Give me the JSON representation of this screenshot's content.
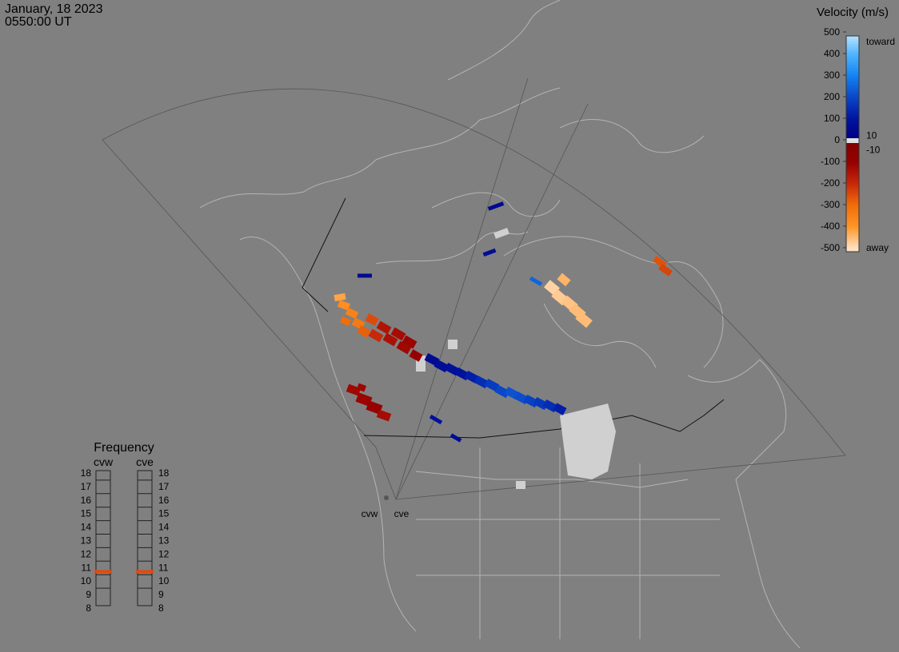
{
  "header": {
    "date": "January, 18 2023",
    "time": "0550:00 UT"
  },
  "velocity_scale": {
    "title": "Velocity (m/s)",
    "ticks": [
      500,
      400,
      300,
      200,
      100,
      0,
      -100,
      -200,
      -300,
      -400,
      -500
    ],
    "toward": "toward",
    "away": "away",
    "upper_threshold": 10,
    "lower_threshold": -10
  },
  "radars": [
    {
      "name": "cvw"
    },
    {
      "name": "cve"
    }
  ],
  "frequency": {
    "title": "Frequency",
    "ticks": [
      18,
      17,
      16,
      15,
      14,
      13,
      12,
      11,
      10,
      9,
      8
    ],
    "radars": [
      {
        "name": "cvw",
        "value": 10.7
      },
      {
        "name": "cve",
        "value": 10.7
      }
    ]
  },
  "cells": [
    -420,
    -380,
    -350,
    -300,
    -330,
    -280,
    -250,
    -200,
    -150,
    -140,
    -130,
    -120,
    -110,
    -100,
    -480,
    -470,
    -460,
    -450,
    -450,
    -440,
    60,
    70,
    80,
    90,
    120,
    150,
    180,
    200,
    220,
    210,
    190,
    170,
    150,
    120,
    -120,
    -110,
    -100,
    -130,
    -115,
    -260,
    -240,
    60,
    50,
    70,
    80,
    60,
    250
  ]
}
